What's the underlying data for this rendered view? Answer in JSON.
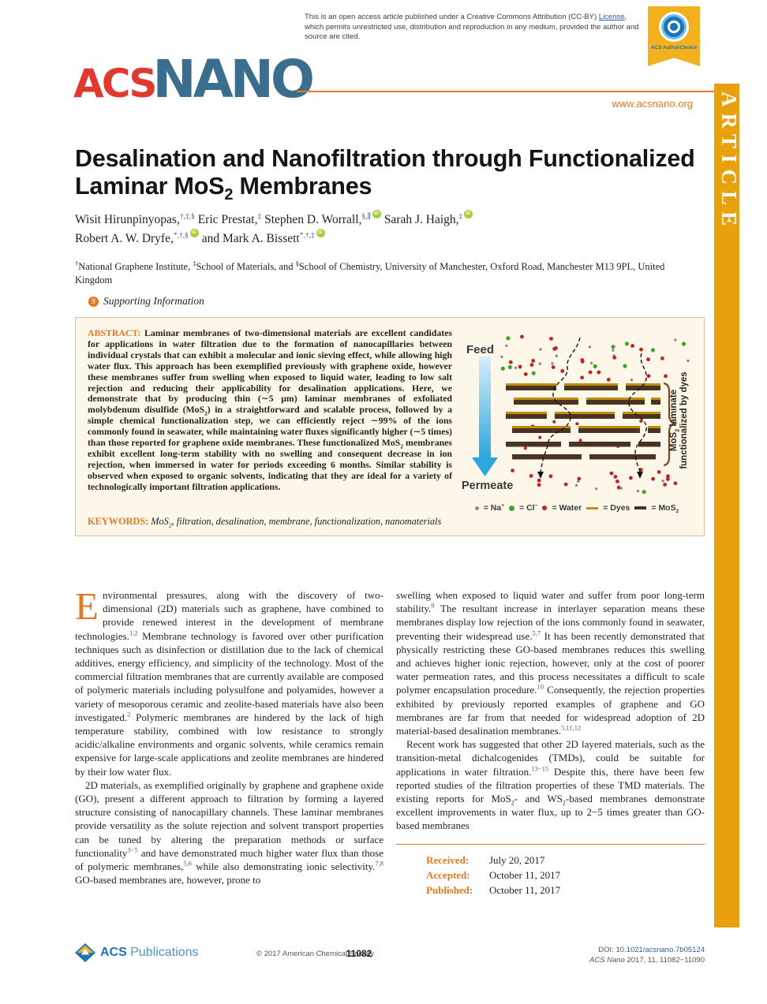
{
  "colors": {
    "accent": "#E87722",
    "banner": "#E8A00C",
    "acs_red": "#E2392F",
    "nano_blue": "#3A6E8F",
    "link_blue": "#2E5FA8",
    "orcid_green": "#A6CE39",
    "abstract_bg": "#FDF7EA",
    "dye_gold": "#C08F0E",
    "mos2_brown": "#4A3322",
    "na_gray": "#8A8A8A",
    "cl_green": "#3DA52B",
    "water_red": "#C8201D"
  },
  "page": {
    "open_access": {
      "pre": "This is an open access article published under a Creative Commons Attribution (CC-BY) ",
      "link": "License",
      "post": ", which permits unrestricted use, distribution and reproduction in any medium, provided the author and source are cited."
    },
    "badge": {
      "label": "ACS AuthorChoice"
    },
    "logo": {
      "acs": "ACS",
      "nano": "NANO",
      "url": "www.acsnano.org"
    },
    "banner": "ARTICLE"
  },
  "article": {
    "title": "Desalination and Nanofiltration through Functionalized Laminar MoS_{2} Membranes",
    "authors": [
      {
        "text": "Wisit Hirunpinyopas,^{†,‡,§} ",
        "orcid": false
      },
      {
        "text": "Eric Prestat,^{‡} ",
        "orcid": false
      },
      {
        "text": "Stephen D. Worrall,^{§,∥}",
        "orcid": true
      },
      {
        "text": " Sarah J. Haigh,^{‡}",
        "orcid": true
      },
      {
        "text": "Robert A. W. Dryfe,^{*,†,§}",
        "orcid": true
      },
      {
        "text": " and Mark A. Bissett^{*,†,‡}",
        "orcid": true
      }
    ],
    "affiliation": "^{†}National Graphene Institute, ^{‡}School of Materials, and ^{§}School of Chemistry, University of Manchester, Oxford Road, Manchester M13 9PL, United Kingdom",
    "supporting": "Supporting Information",
    "abstract": {
      "label": "ABSTRACT:",
      "text": " Laminar membranes of two-dimensional materials are excellent candidates for applications in water filtration due to the formation of nanocapillaries between individual crystals that can exhibit a molecular and ionic sieving effect, while allowing high water flux. This approach has been exemplified previously with graphene oxide, however these membranes suffer from swelling when exposed to liquid water, leading to low salt rejection and reducing their applicability for desalination applications. Here, we demonstrate that by producing thin (∼5 μm) laminar membranes of exfoliated molybdenum disulfide (MoS_{2}) in a straightforward and scalable process, followed by a simple chemical functionalization step, we can efficiently reject ∼99% of the ions commonly found in seawater, while maintaining water fluxes significantly higher (∼5 times) than those reported for graphene oxide membranes. These functionalized MoS_{2} membranes exhibit excellent long-term stability with no swelling and consequent decrease in ion rejection, when immersed in water for periods exceeding 6 months. Similar stability is observed when exposed to organic solvents, indicating that they are ideal for a variety of technologically important filtration applications."
    },
    "keywords": {
      "label": "KEYWORDS:",
      "text": " MoS_{2}, filtration, desalination, membrane, functionalization, nanomaterials"
    },
    "body": {
      "col1_p1_dropcap": "E",
      "col1_p1": "nvironmental pressures, along with the discovery of two-dimensional (2D) materials such as graphene, have combined to provide renewed interest in the development of membrane technologies.^{1,2} Membrane technology is favored over other purification techniques such as disinfection or distillation due to the lack of chemical additives, energy efficiency, and simplicity of the technology. Most of the commercial filtration membranes that are currently available are composed of polymeric materials including polysulfone and polyamides, however a variety of mesoporous ceramic and zeolite-based materials have also been investigated.^{2} Polymeric membranes are hindered by the lack of high temperature stability, combined with low resistance to strongly acidic/alkaline environments and organic solvents, while ceramics remain expensive for large-scale applications and zeolite membranes are hindered by their low water flux.",
      "col1_p2": "2D materials, as exemplified originally by graphene and graphene oxide (GO), present a different approach to filtration by forming a layered structure consisting of nanocapillary channels. These laminar membranes provide versatility as the solute rejection and solvent transport properties can be tuned by altering the preparation methods or surface functionality^{3−5} and have demonstrated much higher water flux than those of polymeric membranes,^{5,6} while also demonstrating ionic selectivity.^{7,8} GO-based membranes are, however, prone to",
      "col2_p1": "swelling when exposed to liquid water and suffer from poor long-term stability.^{9} The resultant increase in interlayer separation means these membranes display low rejection of the ions commonly found in seawater, preventing their widespread use.^{5,7} It has been recently demonstrated that physically restricting these GO-based membranes reduces this swelling and achieves higher ionic rejection, however, only at the cost of poorer water permeation rates, and this process necessitates a difficult to scale polymer encapsulation procedure.^{10} Consequently, the rejection properties exhibited by previously reported examples of graphene and GO membranes are far from that needed for widespread adoption of 2D material-based desalination membranes.^{5,11,12}",
      "col2_p2": "Recent work has suggested that other 2D layered materials, such as the transition-metal dichalcogenides (TMDs), could be suitable for applications in water filtration.^{13−15} Despite this, there have been few reported studies of the filtration properties of these TMD materials. The existing reports for MoS_{2}- and WS_{2}-based membranes demonstrate excellent improvements in water flux, up to 2−5 times greater than GO-based membranes"
    },
    "dates": [
      {
        "label": "Received:",
        "value": "July 20, 2017"
      },
      {
        "label": "Accepted:",
        "value": "October 11, 2017"
      },
      {
        "label": "Published:",
        "value": "October 11, 2017"
      }
    ]
  },
  "figure": {
    "feed_label": "Feed",
    "permeate_label": "Permeate",
    "side_label_line1": "MoS_{2} laminate",
    "side_label_line2": "functionalized by dyes",
    "legend": [
      {
        "symbol": "gray-dot",
        "label": "= Na^{+}"
      },
      {
        "symbol": "green-dot",
        "label": "= Cl^{−}"
      },
      {
        "symbol": "red-dot",
        "label": "= Water"
      },
      {
        "symbol": "gold-dash",
        "label": "= Dyes"
      },
      {
        "symbol": "brown-dash",
        "label": "= MoS_{2}"
      }
    ]
  },
  "footer": {
    "publisher_acs": "ACS",
    "publisher_rest": " Publications",
    "copyright": "© 2017 American Chemical Society",
    "page": "11082",
    "doi_label": "DOI: ",
    "doi": "10.1021/acsnano.7b05124",
    "citation_journal": "ACS Nano",
    "citation_rest": " 2017, 11, 11082−11090"
  }
}
